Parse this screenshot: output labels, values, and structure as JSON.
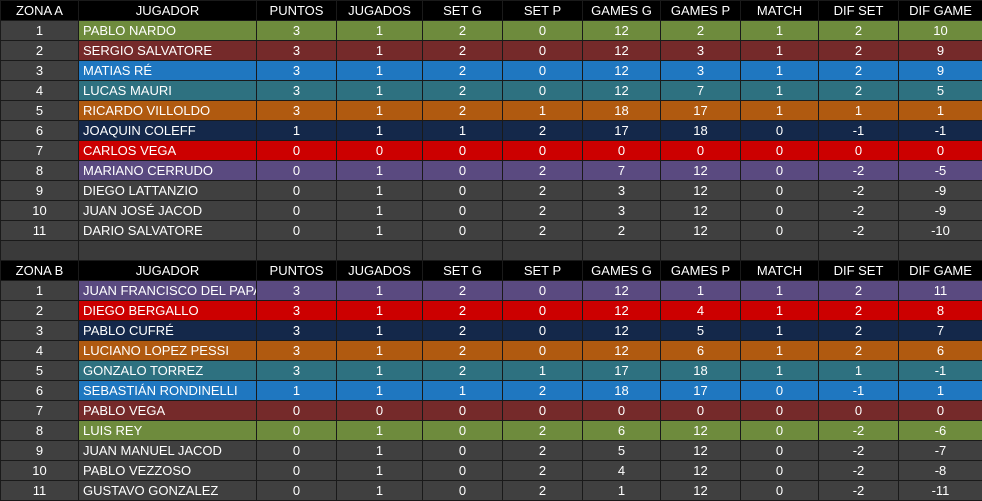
{
  "colors": {
    "green": "#6e8b3d",
    "maroon": "#752a2a",
    "blue": "#1f77c0",
    "teal": "#2e7180",
    "orange": "#b05a10",
    "navy": "#14284a",
    "red": "#cc0000",
    "purple": "#5a4a80",
    "gray": "#404040"
  },
  "zonas": [
    {
      "headers": [
        "ZONA A",
        "JUGADOR",
        "PUNTOS",
        "JUGADOS",
        "SET G",
        "SET P",
        "GAMES G",
        "GAMES P",
        "MATCH",
        "DIF SET",
        "DIF GAME"
      ],
      "rows": [
        {
          "color": "green",
          "cells": [
            "1",
            "PABLO NARDO",
            "3",
            "1",
            "2",
            "0",
            "12",
            "2",
            "1",
            "2",
            "10"
          ]
        },
        {
          "color": "maroon",
          "cells": [
            "2",
            "SERGIO SALVATORE",
            "3",
            "1",
            "2",
            "0",
            "12",
            "3",
            "1",
            "2",
            "9"
          ]
        },
        {
          "color": "blue",
          "cells": [
            "3",
            "MATIAS RÉ",
            "3",
            "1",
            "2",
            "0",
            "12",
            "3",
            "1",
            "2",
            "9"
          ]
        },
        {
          "color": "teal",
          "cells": [
            "4",
            "LUCAS MAURI",
            "3",
            "1",
            "2",
            "0",
            "12",
            "7",
            "1",
            "2",
            "5"
          ]
        },
        {
          "color": "orange",
          "cells": [
            "5",
            "RICARDO VILLOLDO",
            "3",
            "1",
            "2",
            "1",
            "18",
            "17",
            "1",
            "1",
            "1"
          ]
        },
        {
          "color": "navy",
          "cells": [
            "6",
            "JOAQUIN COLEFF",
            "1",
            "1",
            "1",
            "2",
            "17",
            "18",
            "0",
            "-1",
            "-1"
          ]
        },
        {
          "color": "red",
          "cells": [
            "7",
            "CARLOS VEGA",
            "0",
            "0",
            "0",
            "0",
            "0",
            "0",
            "0",
            "0",
            "0"
          ]
        },
        {
          "color": "purple",
          "cells": [
            "8",
            "MARIANO CERRUDO",
            "0",
            "1",
            "0",
            "2",
            "7",
            "12",
            "0",
            "-2",
            "-5"
          ]
        },
        {
          "color": "gray",
          "cells": [
            "9",
            "DIEGO LATTANZIO",
            "0",
            "1",
            "0",
            "2",
            "3",
            "12",
            "0",
            "-2",
            "-9"
          ]
        },
        {
          "color": "gray",
          "cells": [
            "10",
            "JUAN JOSÉ JACOD",
            "0",
            "1",
            "0",
            "2",
            "3",
            "12",
            "0",
            "-2",
            "-9"
          ]
        },
        {
          "color": "gray",
          "cells": [
            "11",
            "DARIO SALVATORE",
            "0",
            "1",
            "0",
            "2",
            "2",
            "12",
            "0",
            "-2",
            "-10"
          ]
        }
      ]
    },
    {
      "headers": [
        "ZONA B",
        "JUGADOR",
        "PUNTOS",
        "JUGADOS",
        "SET G",
        "SET P",
        "GAMES G",
        "GAMES P",
        "MATCH",
        "DIF SET",
        "DIF GAME"
      ],
      "rows": [
        {
          "color": "purple",
          "cells": [
            "1",
            "JUAN FRANCISCO DEL PAPA",
            "3",
            "1",
            "2",
            "0",
            "12",
            "1",
            "1",
            "2",
            "11"
          ]
        },
        {
          "color": "red",
          "cells": [
            "2",
            "DIEGO BERGALLO",
            "3",
            "1",
            "2",
            "0",
            "12",
            "4",
            "1",
            "2",
            "8"
          ]
        },
        {
          "color": "navy",
          "cells": [
            "3",
            "PABLO CUFRÉ",
            "3",
            "1",
            "2",
            "0",
            "12",
            "5",
            "1",
            "2",
            "7"
          ]
        },
        {
          "color": "orange",
          "cells": [
            "4",
            "LUCIANO LOPEZ PESSI",
            "3",
            "1",
            "2",
            "0",
            "12",
            "6",
            "1",
            "2",
            "6"
          ]
        },
        {
          "color": "teal",
          "cells": [
            "5",
            "GONZALO TORREZ",
            "3",
            "1",
            "2",
            "1",
            "17",
            "18",
            "1",
            "1",
            "-1"
          ]
        },
        {
          "color": "blue",
          "cells": [
            "6",
            "SEBASTIÁN RONDINELLI",
            "1",
            "1",
            "1",
            "2",
            "18",
            "17",
            "0",
            "-1",
            "1"
          ]
        },
        {
          "color": "maroon",
          "cells": [
            "7",
            "PABLO VEGA",
            "0",
            "0",
            "0",
            "0",
            "0",
            "0",
            "0",
            "0",
            "0"
          ]
        },
        {
          "color": "green",
          "cells": [
            "8",
            "LUIS REY",
            "0",
            "1",
            "0",
            "2",
            "6",
            "12",
            "0",
            "-2",
            "-6"
          ]
        },
        {
          "color": "gray",
          "cells": [
            "9",
            "JUAN MANUEL JACOD",
            "0",
            "1",
            "0",
            "2",
            "5",
            "12",
            "0",
            "-2",
            "-7"
          ]
        },
        {
          "color": "gray",
          "cells": [
            "10",
            "PABLO VEZZOSO",
            "0",
            "1",
            "0",
            "2",
            "4",
            "12",
            "0",
            "-2",
            "-8"
          ]
        },
        {
          "color": "gray",
          "cells": [
            "11",
            "GUSTAVO GONZALEZ",
            "0",
            "1",
            "0",
            "2",
            "1",
            "12",
            "0",
            "-2",
            "-11"
          ]
        }
      ]
    }
  ]
}
